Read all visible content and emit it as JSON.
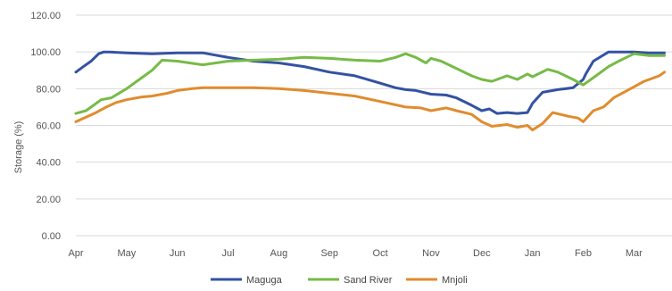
{
  "chart_data": {
    "type": "line",
    "title": "",
    "xlabel": "",
    "ylabel": "Storage (%)",
    "ylim": [
      0,
      120
    ],
    "yticks": [
      "0.00",
      "20.00",
      "40.00",
      "60.00",
      "80.00",
      "100.00",
      "120.00"
    ],
    "months": [
      "Apr",
      "May",
      "Jun",
      "Jul",
      "Aug",
      "Sep",
      "Oct",
      "Nov",
      "Dec",
      "Jan",
      "Feb",
      "Mar"
    ],
    "grid": true,
    "legend_position": "bottom",
    "series": [
      {
        "name": "Maguga",
        "color": "#3452a3",
        "x": [
          0,
          0.15,
          0.3,
          0.45,
          0.55,
          0.65,
          1.0,
          1.5,
          2.0,
          2.5,
          3.0,
          3.5,
          4.0,
          4.5,
          5.0,
          5.5,
          6.0,
          6.3,
          6.5,
          6.7,
          7.0,
          7.3,
          7.5,
          7.8,
          8.0,
          8.15,
          8.3,
          8.5,
          8.7,
          8.9,
          9.0,
          9.2,
          9.5,
          9.8,
          10.0,
          10.05,
          10.2,
          10.5,
          10.8,
          11.0,
          11.3,
          11.6
        ],
        "values": [
          89,
          92,
          95,
          99,
          100,
          100,
          99.5,
          99,
          99.5,
          99.5,
          97,
          95,
          94,
          92,
          89,
          87,
          83,
          80.5,
          79.5,
          79,
          77,
          76.5,
          75,
          71,
          68,
          69,
          66.5,
          67,
          66.5,
          67,
          72,
          78,
          79.5,
          80.5,
          85,
          88,
          95,
          100,
          100,
          100,
          99.5,
          99.5
        ]
      },
      {
        "name": "Sand River",
        "color": "#76bb46",
        "x": [
          0,
          0.2,
          0.35,
          0.5,
          0.7,
          1.0,
          1.3,
          1.5,
          1.7,
          2.0,
          2.5,
          3.0,
          3.5,
          4.0,
          4.5,
          5.0,
          5.5,
          6.0,
          6.3,
          6.5,
          6.7,
          6.9,
          7.0,
          7.2,
          7.5,
          7.8,
          8.0,
          8.2,
          8.5,
          8.7,
          8.9,
          9.0,
          9.3,
          9.5,
          9.8,
          10.0,
          10.3,
          10.5,
          10.7,
          11.0,
          11.3,
          11.6
        ],
        "values": [
          66.5,
          68,
          71,
          74,
          75,
          80,
          86,
          90,
          95.5,
          95,
          93,
          95,
          95.5,
          96,
          97,
          96.5,
          95.5,
          95,
          97,
          99,
          97,
          94,
          96.5,
          95,
          91,
          87,
          85,
          84,
          87,
          85,
          88,
          86.5,
          90.5,
          89,
          85,
          82,
          88,
          92,
          95,
          99,
          98,
          98
        ]
      },
      {
        "name": "Mnjoli",
        "color": "#e08c2e",
        "x": [
          0,
          0.2,
          0.4,
          0.6,
          0.8,
          1.0,
          1.3,
          1.5,
          1.8,
          2.0,
          2.3,
          2.5,
          3.0,
          3.5,
          4.0,
          4.5,
          5.0,
          5.5,
          6.0,
          6.5,
          6.8,
          7.0,
          7.3,
          7.5,
          7.8,
          8.0,
          8.2,
          8.5,
          8.7,
          8.9,
          9.0,
          9.2,
          9.4,
          9.7,
          9.9,
          10.0,
          10.2,
          10.4,
          10.6,
          10.8,
          11.0,
          11.2,
          11.5,
          11.6
        ],
        "values": [
          62,
          64.5,
          67,
          70,
          72.5,
          74,
          75.5,
          76,
          77.5,
          79,
          80,
          80.5,
          80.5,
          80.5,
          80,
          79,
          77.5,
          76,
          73,
          70,
          69.5,
          68,
          69.5,
          68,
          66,
          62,
          59.5,
          60.5,
          59,
          60,
          57.5,
          61,
          67,
          65,
          64,
          62,
          68,
          70,
          75,
          78,
          81,
          84,
          87,
          89
        ]
      }
    ]
  }
}
